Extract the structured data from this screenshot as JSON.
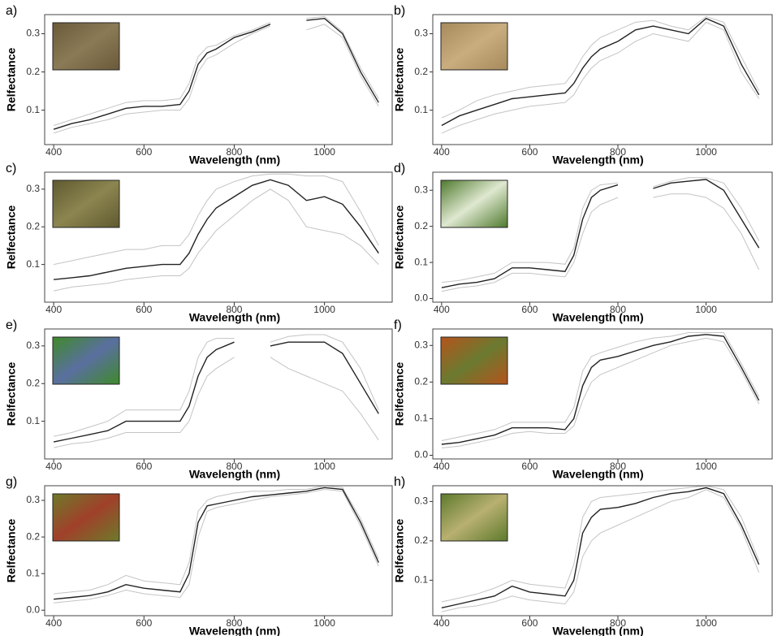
{
  "chart_data": [
    {
      "type": "line",
      "panel_label": "a)",
      "xlabel": "Wavelength (nm)",
      "ylabel": "Relfectance",
      "x": [
        400,
        440,
        480,
        520,
        560,
        600,
        640,
        680,
        700,
        720,
        740,
        760,
        800,
        840,
        880,
        920,
        960,
        1000,
        1040,
        1080,
        1120
      ],
      "xlim": [
        380,
        1150
      ],
      "ylim": [
        0.01,
        0.35
      ],
      "xticks": [
        400,
        600,
        800,
        1000
      ],
      "yticks": [
        0.1,
        0.2,
        0.3
      ],
      "series": [
        {
          "color": "#c4c4c4",
          "values": [
            0.04,
            0.055,
            0.065,
            0.075,
            0.09,
            0.095,
            0.1,
            0.1,
            0.13,
            0.2,
            0.235,
            0.245,
            0.275,
            0.3,
            0.32,
            null,
            0.31,
            0.325,
            0.29,
            0.19,
            0.11
          ]
        },
        {
          "color": "#c4c4c4",
          "values": [
            0.06,
            0.075,
            0.09,
            0.105,
            0.12,
            0.125,
            0.125,
            0.13,
            0.17,
            0.24,
            0.265,
            0.27,
            0.295,
            0.31,
            0.33,
            null,
            0.34,
            0.345,
            0.305,
            0.21,
            0.13
          ]
        },
        {
          "color": "#222222",
          "values": [
            0.05,
            0.065,
            0.075,
            0.09,
            0.105,
            0.11,
            0.11,
            0.115,
            0.15,
            0.22,
            0.25,
            0.26,
            0.29,
            0.305,
            0.325,
            null,
            0.335,
            0.34,
            0.3,
            0.2,
            0.12
          ]
        }
      ]
    },
    {
      "type": "line",
      "panel_label": "b)",
      "xlabel": "Wavelength (nm)",
      "ylabel": "Relfectance",
      "x": [
        400,
        440,
        480,
        520,
        560,
        600,
        640,
        680,
        700,
        720,
        740,
        760,
        800,
        840,
        880,
        920,
        960,
        1000,
        1040,
        1080,
        1120
      ],
      "xlim": [
        380,
        1150
      ],
      "ylim": [
        0.01,
        0.35
      ],
      "xticks": [
        400,
        600,
        800,
        1000
      ],
      "yticks": [
        0.1,
        0.2,
        0.3
      ],
      "series": [
        {
          "color": "#c4c4c4",
          "values": [
            0.04,
            0.06,
            0.075,
            0.09,
            0.1,
            0.11,
            0.115,
            0.12,
            0.14,
            0.18,
            0.21,
            0.23,
            0.25,
            0.28,
            0.3,
            0.29,
            0.28,
            0.33,
            0.31,
            0.2,
            0.13
          ]
        },
        {
          "color": "#c4c4c4",
          "values": [
            0.08,
            0.1,
            0.125,
            0.14,
            0.15,
            0.16,
            0.165,
            0.17,
            0.2,
            0.24,
            0.27,
            0.29,
            0.31,
            0.33,
            0.335,
            0.32,
            0.31,
            0.345,
            0.33,
            0.24,
            0.15
          ]
        },
        {
          "color": "#222222",
          "values": [
            0.06,
            0.085,
            0.1,
            0.115,
            0.13,
            0.135,
            0.14,
            0.145,
            0.17,
            0.21,
            0.24,
            0.26,
            0.28,
            0.31,
            0.32,
            0.31,
            0.3,
            0.34,
            0.32,
            0.22,
            0.14
          ]
        }
      ]
    },
    {
      "type": "line",
      "panel_label": "c)",
      "xlabel": "Wavelength (nm)",
      "ylabel": "Relfectance",
      "x": [
        400,
        440,
        480,
        520,
        560,
        600,
        640,
        680,
        700,
        720,
        740,
        760,
        800,
        840,
        880,
        920,
        960,
        1000,
        1040,
        1080,
        1120
      ],
      "xlim": [
        380,
        1150
      ],
      "ylim": [
        0.0,
        0.345
      ],
      "xticks": [
        400,
        600,
        800,
        1000
      ],
      "yticks": [
        0.1,
        0.2,
        0.3
      ],
      "series": [
        {
          "color": "#c4c4c4",
          "values": [
            0.03,
            0.04,
            0.045,
            0.05,
            0.06,
            0.065,
            0.07,
            0.07,
            0.09,
            0.13,
            0.16,
            0.19,
            0.23,
            0.27,
            0.3,
            0.27,
            0.2,
            0.19,
            0.18,
            0.15,
            0.1
          ]
        },
        {
          "color": "#c4c4c4",
          "values": [
            0.1,
            0.11,
            0.12,
            0.13,
            0.14,
            0.14,
            0.15,
            0.15,
            0.18,
            0.23,
            0.27,
            0.3,
            0.32,
            0.335,
            0.34,
            0.34,
            0.335,
            0.335,
            0.32,
            0.24,
            0.15
          ]
        },
        {
          "color": "#222222",
          "values": [
            0.06,
            0.065,
            0.07,
            0.08,
            0.09,
            0.095,
            0.1,
            0.1,
            0.13,
            0.18,
            0.22,
            0.25,
            0.28,
            0.31,
            0.325,
            0.31,
            0.27,
            0.28,
            0.26,
            0.2,
            0.13
          ]
        }
      ]
    },
    {
      "type": "line",
      "panel_label": "d)",
      "xlabel": "Wavelength (nm)",
      "ylabel": "Relfectance",
      "x": [
        400,
        440,
        480,
        520,
        560,
        600,
        640,
        680,
        700,
        720,
        740,
        760,
        800,
        840,
        880,
        920,
        960,
        1000,
        1040,
        1080,
        1120
      ],
      "xlim": [
        380,
        1150
      ],
      "ylim": [
        -0.01,
        0.35
      ],
      "xticks": [
        400,
        600,
        800,
        1000
      ],
      "yticks": [
        {
          "value": 0,
          "label": "0.0"
        },
        0.1,
        0.2,
        0.3
      ],
      "series": [
        {
          "color": "#c4c4c4",
          "values": [
            0.02,
            0.03,
            0.035,
            0.045,
            0.07,
            0.07,
            0.065,
            0.06,
            0.1,
            0.18,
            0.24,
            0.26,
            0.28,
            null,
            0.28,
            0.29,
            0.29,
            0.28,
            0.25,
            0.18,
            0.08
          ]
        },
        {
          "color": "#c4c4c4",
          "values": [
            0.045,
            0.05,
            0.06,
            0.07,
            0.1,
            0.1,
            0.1,
            0.095,
            0.14,
            0.25,
            0.3,
            0.315,
            0.32,
            null,
            0.31,
            0.325,
            0.335,
            0.335,
            0.32,
            0.25,
            0.16
          ]
        },
        {
          "color": "#222222",
          "values": [
            0.03,
            0.04,
            0.045,
            0.055,
            0.085,
            0.085,
            0.08,
            0.075,
            0.12,
            0.22,
            0.28,
            0.3,
            0.315,
            null,
            0.305,
            0.32,
            0.325,
            0.33,
            0.3,
            0.22,
            0.14
          ]
        }
      ]
    },
    {
      "type": "line",
      "panel_label": "e)",
      "xlabel": "Wavelength (nm)",
      "ylabel": "Relfectance",
      "x": [
        400,
        440,
        480,
        520,
        560,
        600,
        640,
        680,
        700,
        720,
        740,
        760,
        800,
        840,
        880,
        920,
        960,
        1000,
        1040,
        1080,
        1120
      ],
      "xlim": [
        380,
        1150
      ],
      "ylim": [
        0.0,
        0.345
      ],
      "xticks": [
        400,
        600,
        800,
        1000
      ],
      "yticks": [
        0.1,
        0.2,
        0.3
      ],
      "series": [
        {
          "color": "#c4c4c4",
          "values": [
            0.03,
            0.04,
            0.045,
            0.055,
            0.07,
            0.07,
            0.07,
            0.07,
            0.1,
            0.17,
            0.22,
            0.24,
            0.27,
            null,
            0.27,
            0.24,
            0.22,
            0.2,
            0.18,
            0.12,
            0.05
          ]
        },
        {
          "color": "#c4c4c4",
          "values": [
            0.06,
            0.07,
            0.085,
            0.1,
            0.13,
            0.13,
            0.13,
            0.13,
            0.18,
            0.27,
            0.31,
            0.32,
            0.32,
            null,
            0.31,
            0.325,
            0.33,
            0.33,
            0.31,
            0.24,
            0.13
          ]
        },
        {
          "color": "#222222",
          "values": [
            0.045,
            0.055,
            0.065,
            0.075,
            0.1,
            0.1,
            0.1,
            0.1,
            0.14,
            0.22,
            0.27,
            0.29,
            0.31,
            null,
            0.3,
            0.31,
            0.31,
            0.31,
            0.28,
            0.2,
            0.12
          ]
        }
      ]
    },
    {
      "type": "line",
      "panel_label": "f)",
      "xlabel": "Wavelength (nm)",
      "ylabel": "Relfectance",
      "x": [
        400,
        440,
        480,
        520,
        560,
        600,
        640,
        680,
        700,
        720,
        740,
        760,
        800,
        840,
        880,
        920,
        960,
        1000,
        1040,
        1080,
        1120
      ],
      "xlim": [
        380,
        1150
      ],
      "ylim": [
        -0.01,
        0.345
      ],
      "xticks": [
        400,
        600,
        800,
        1000
      ],
      "yticks": [
        {
          "value": 0,
          "label": "0.0"
        },
        0.1,
        0.2,
        0.3
      ],
      "series": [
        {
          "color": "#c4c4c4",
          "values": [
            0.02,
            0.025,
            0.035,
            0.045,
            0.06,
            0.065,
            0.06,
            0.06,
            0.08,
            0.15,
            0.2,
            0.22,
            0.24,
            0.26,
            0.28,
            0.3,
            0.31,
            0.32,
            0.31,
            0.23,
            0.14
          ]
        },
        {
          "color": "#c4c4c4",
          "values": [
            0.04,
            0.05,
            0.06,
            0.07,
            0.09,
            0.09,
            0.09,
            0.09,
            0.13,
            0.23,
            0.27,
            0.28,
            0.295,
            0.31,
            0.32,
            0.325,
            0.335,
            0.335,
            0.335,
            0.25,
            0.16
          ]
        },
        {
          "color": "#222222",
          "values": [
            0.03,
            0.035,
            0.045,
            0.055,
            0.075,
            0.075,
            0.075,
            0.07,
            0.1,
            0.19,
            0.24,
            0.26,
            0.27,
            0.285,
            0.3,
            0.31,
            0.325,
            0.33,
            0.325,
            0.24,
            0.15
          ]
        }
      ]
    },
    {
      "type": "line",
      "panel_label": "g)",
      "xlabel": "Wavelength (nm)",
      "ylabel": "Relfectance",
      "x": [
        400,
        440,
        480,
        520,
        560,
        600,
        640,
        680,
        700,
        720,
        740,
        760,
        800,
        840,
        880,
        920,
        960,
        1000,
        1040,
        1080,
        1120
      ],
      "xlim": [
        380,
        1150
      ],
      "ylim": [
        -0.015,
        0.34
      ],
      "xticks": [
        400,
        600,
        800,
        1000
      ],
      "yticks": [
        {
          "value": 0,
          "label": "0.0"
        },
        0.1,
        0.2,
        0.3
      ],
      "series": [
        {
          "color": "#c4c4c4",
          "values": [
            0.02,
            0.025,
            0.03,
            0.04,
            0.055,
            0.045,
            0.04,
            0.035,
            0.07,
            0.2,
            0.27,
            0.28,
            0.29,
            0.3,
            0.31,
            0.315,
            0.32,
            0.33,
            0.325,
            0.23,
            0.12
          ]
        },
        {
          "color": "#c4c4c4",
          "values": [
            0.045,
            0.05,
            0.055,
            0.07,
            0.095,
            0.08,
            0.075,
            0.07,
            0.13,
            0.27,
            0.3,
            0.31,
            0.32,
            0.325,
            0.325,
            0.33,
            0.33,
            0.34,
            0.335,
            0.25,
            0.14
          ]
        },
        {
          "color": "#222222",
          "values": [
            0.03,
            0.035,
            0.04,
            0.05,
            0.07,
            0.06,
            0.055,
            0.05,
            0.1,
            0.24,
            0.285,
            0.29,
            0.3,
            0.31,
            0.315,
            0.32,
            0.325,
            0.335,
            0.33,
            0.24,
            0.13
          ]
        }
      ]
    },
    {
      "type": "line",
      "panel_label": "h)",
      "xlabel": "Wavelength (nm)",
      "ylabel": "Relfectance",
      "x": [
        400,
        440,
        480,
        520,
        560,
        600,
        640,
        680,
        700,
        720,
        740,
        760,
        800,
        840,
        880,
        920,
        960,
        1000,
        1040,
        1080,
        1120
      ],
      "xlim": [
        380,
        1150
      ],
      "ylim": [
        0.01,
        0.34
      ],
      "xticks": [
        400,
        600,
        800,
        1000
      ],
      "yticks": [
        0.1,
        0.2,
        0.3
      ],
      "series": [
        {
          "color": "#c4c4c4",
          "values": [
            0.02,
            0.03,
            0.035,
            0.045,
            0.06,
            0.05,
            0.045,
            0.04,
            0.07,
            0.16,
            0.2,
            0.22,
            0.24,
            0.26,
            0.28,
            0.3,
            0.31,
            0.33,
            0.31,
            0.23,
            0.12
          ]
        },
        {
          "color": "#c4c4c4",
          "values": [
            0.045,
            0.055,
            0.065,
            0.08,
            0.1,
            0.09,
            0.085,
            0.08,
            0.14,
            0.26,
            0.3,
            0.31,
            0.315,
            0.32,
            0.325,
            0.33,
            0.335,
            0.34,
            0.33,
            0.26,
            0.15
          ]
        },
        {
          "color": "#222222",
          "values": [
            0.03,
            0.04,
            0.05,
            0.06,
            0.085,
            0.07,
            0.065,
            0.06,
            0.1,
            0.22,
            0.26,
            0.28,
            0.285,
            0.295,
            0.31,
            0.32,
            0.325,
            0.335,
            0.32,
            0.24,
            0.14
          ]
        }
      ]
    }
  ]
}
